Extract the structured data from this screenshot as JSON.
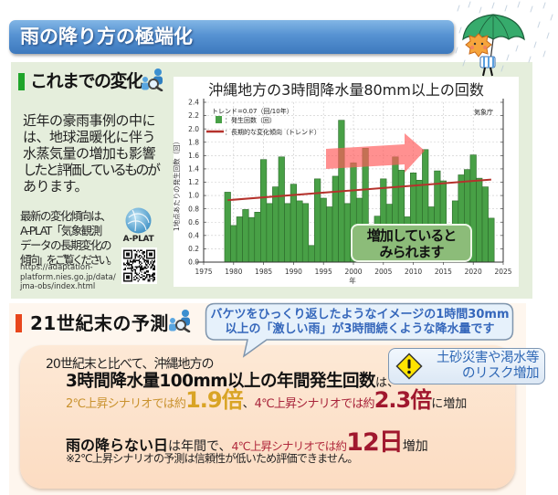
{
  "title_bar": {
    "title": "雨の降り方の極端化"
  },
  "section_past": {
    "heading": "これまでの変化",
    "body_lines": [
      "近年の豪雨事例の中に",
      "は、地球温暖化に伴う",
      "水蒸気量の増加も影響",
      "したと評価しているものが",
      "あります。"
    ],
    "note_lines": [
      "最新の変化傾向は、",
      "A-PLAT「気象観測",
      "データの長期変化の",
      "傾向」をご覧ください。"
    ],
    "url_lines": [
      "https://adaptation-",
      "platform.nies.go.jp/data/",
      "jma-obs/index.html"
    ],
    "logo_label": "A-PLAT"
  },
  "section_future": {
    "heading": "21世紀末の予測",
    "bubble_lines": [
      "バケツをひっくり返したようなイメージの1時間30mm",
      "以上の「激しい雨」が3時間続くような降水量です"
    ],
    "risk_lines": [
      "土砂災害や渇水等",
      "のリスク増加"
    ],
    "intro": "20世紀末と比べて、沖縄地方の",
    "metric_label": "3時間降水量100mm以上の年間発生回数",
    "metric_suffix": "は、",
    "scenario": {
      "s2_label": "2℃上昇シナリオでは約",
      "s2_value": "1.9倍",
      "separator": "、",
      "s4_label": "4℃上昇シナリオでは約",
      "s4_value": "2.3倍",
      "tail": "に増加"
    },
    "dry_days": {
      "label": "雨の降らない日",
      "mid": "は年間で、",
      "s4_label": "4℃上昇シナリオでは約",
      "value": "12日",
      "tail": "増加"
    },
    "footnote": "※2℃上昇シナリオの予測は信頼性が低いため評価できません。"
  },
  "colors": {
    "title_bar": "#4a86c8",
    "section_past_bg": "#e5eedc",
    "section_future_bg": "#fef6ee",
    "panel_bg": "#fcdfc6",
    "past_marker": "#1fa52a",
    "future_marker": "#e8461c",
    "scenario_2c": "#c9922e",
    "scenario_4c": "#a8233a",
    "callout_text": "#3567bb"
  },
  "chart_data": {
    "type": "bar",
    "title": "沖縄地方の3時間降水量80mm以上の回数",
    "xlabel": "年",
    "ylabel": "1地点あたりの発生回数（回）",
    "source": "気象庁",
    "trend_text": "トレンド=0.07（回/10年）",
    "legend": [
      {
        "label": "：発生回数（回）",
        "type": "bar",
        "color": "#48a046"
      },
      {
        "label": "：長期的な変化傾向（トレンド）",
        "type": "line",
        "color": "#b5322c"
      }
    ],
    "x": [
      1979,
      1980,
      1981,
      1982,
      1983,
      1984,
      1985,
      1986,
      1987,
      1988,
      1989,
      1990,
      1991,
      1992,
      1993,
      1994,
      1995,
      1996,
      1997,
      1998,
      1999,
      2000,
      2001,
      2002,
      2003,
      2004,
      2005,
      2006,
      2007,
      2008,
      2009,
      2010,
      2011,
      2012,
      2013,
      2014,
      2015,
      2016,
      2017,
      2018,
      2019,
      2020,
      2021,
      2022,
      2023
    ],
    "values": [
      1.05,
      0.55,
      0.68,
      0.79,
      0.67,
      0.75,
      1.54,
      0.88,
      1.13,
      1.58,
      0.88,
      1.17,
      0.92,
      0.88,
      0.25,
      1.25,
      0.96,
      0.83,
      1.29,
      2.13,
      0.88,
      1.49,
      0.96,
      1.71,
      0.5,
      0.69,
      1.25,
      0.87,
      1.58,
      1.38,
      0.68,
      1.34,
      1.23,
      1.69,
      0.83,
      1.37,
      1.22,
      0.5,
      0.92,
      1.31,
      1.39,
      1.61,
      1.26,
      1.13,
      0.66
    ],
    "trend": {
      "start_year": 1979,
      "end_year": 2023,
      "start_value": 0.93,
      "end_value": 1.24,
      "slope_per_10yr": 0.07
    },
    "xlim": [
      1975,
      2025
    ],
    "xticks": [
      1975,
      1980,
      1985,
      1990,
      1995,
      2000,
      2005,
      2010,
      2015,
      2020,
      2025
    ],
    "ylim": [
      0,
      2.4
    ],
    "yticks": [
      "0.0",
      "0.2",
      "0.4",
      "0.6",
      "0.8",
      "1.0",
      "1.2",
      "1.4",
      "1.6",
      "1.8",
      "2.0",
      "2.2",
      "2.4"
    ],
    "grid": true,
    "legend_position": "upper-left",
    "annotation": {
      "lines": [
        "増加していると",
        "みられます"
      ]
    }
  }
}
